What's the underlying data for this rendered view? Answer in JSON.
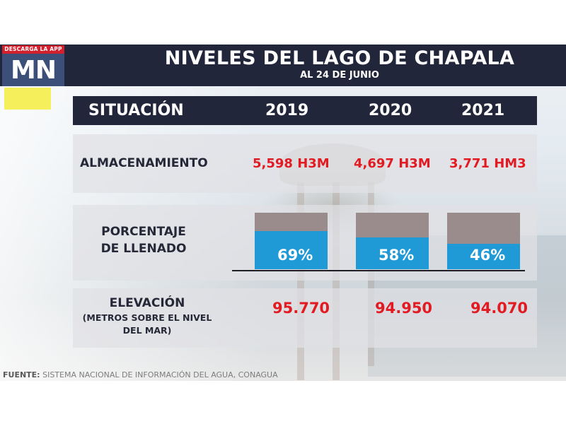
{
  "logo": {
    "band_text": "DESCARGA LA APP",
    "brand": "MN"
  },
  "header": {
    "title": "NIVELES DEL LAGO DE CHAPALA",
    "subtitle": "AL 24 DE JUNIO"
  },
  "table": {
    "columns": [
      "SITUACIÓN",
      "2019",
      "2020",
      "2021"
    ],
    "rows": [
      {
        "label_lines": [
          "ALMACENAMIENTO"
        ],
        "values": [
          "5,598 H3M",
          "4,697 H3M",
          "3,771 HM3"
        ]
      },
      {
        "label_lines": [
          "PORCENTAJE",
          "DE LLENADO"
        ],
        "values": [
          "69%",
          "58%",
          "46%"
        ]
      },
      {
        "label_lines": [
          "ELEVACIÓN",
          "(METROS SOBRE EL NIVEL",
          "DEL MAR)"
        ],
        "values": [
          "95.770",
          "94.950",
          "94.070"
        ]
      }
    ]
  },
  "source": {
    "label": "FUENTE:",
    "text": " SISTEMA NACIONAL DE INFORMACIÓN DEL AGUA, CONAGUA"
  },
  "colors": {
    "header_bg": "#22263a",
    "value_red": "#e21b23",
    "bar_fill": "#1f9ad6",
    "bar_empty": "#9a8c8d",
    "logo_red": "#d3202c",
    "logo_blue": "#3c4f78",
    "yellow_tag": "#f6ef5c"
  },
  "chart_data": {
    "type": "table",
    "title": "NIVELES DEL LAGO DE CHAPALA",
    "subtitle": "AL 24 DE JUNIO",
    "categories": [
      "2019",
      "2020",
      "2021"
    ],
    "series": [
      {
        "name": "ALMACENAMIENTO",
        "values": [
          5598,
          4697,
          3771
        ],
        "unit_labels": [
          "H3M",
          "H3M",
          "HM3"
        ]
      },
      {
        "name": "PORCENTAJE DE LLENADO",
        "values": [
          69,
          58,
          46
        ],
        "unit": "%",
        "display": "bar",
        "ylim": [
          0,
          100
        ]
      },
      {
        "name": "ELEVACIÓN (METROS SOBRE EL NIVEL DEL MAR)",
        "values": [
          95.77,
          94.95,
          94.07
        ]
      }
    ],
    "source": "FUENTE: SISTEMA NACIONAL DE INFORMACIÓN DEL AGUA, CONAGUA"
  }
}
